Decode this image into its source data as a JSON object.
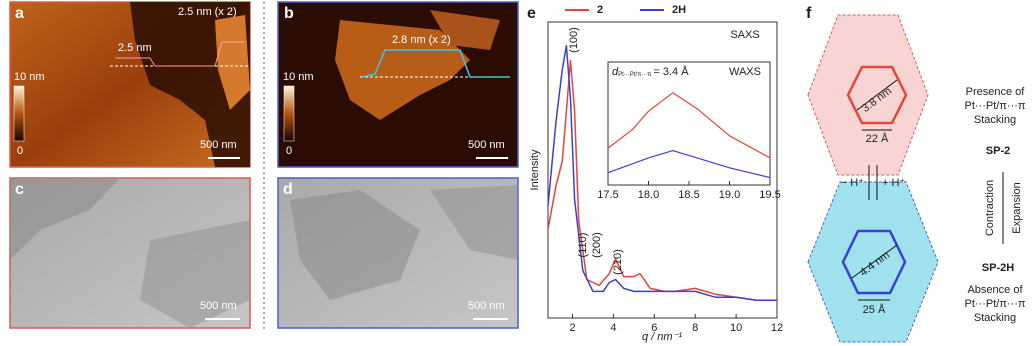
{
  "panels": {
    "a": {
      "letter": "a",
      "scale_max": "10 nm",
      "scale_min": "0",
      "scale_bar": "500 nm",
      "height_1": "2.5 nm",
      "height_2": "2.5 nm (x 2)"
    },
    "b": {
      "letter": "b",
      "scale_max": "10 nm",
      "scale_min": "0",
      "scale_bar": "500 nm",
      "height_1": "2.8 nm (x 2)"
    },
    "c": {
      "letter": "c",
      "scale_bar": "500 nm"
    },
    "d": {
      "letter": "d",
      "scale_bar": "500 nm"
    },
    "e": {
      "letter": "e"
    },
    "f": {
      "letter": "f",
      "top_diameter": "3.8 nm",
      "top_width": "22 Å",
      "bottom_diameter": "4.4 nm",
      "bottom_width": "25 Å",
      "deprotonation": "− H⁺",
      "protonation": "+ H⁺",
      "top_text": [
        "Presence of",
        "Pt···Pt/π···π",
        "Stacking"
      ],
      "top_name": "SP-2",
      "contraction": "Contraction",
      "expansion": "Expansion",
      "bottom_name": "SP-2H",
      "bottom_text": [
        "Absence of",
        "Pt···Pt/π···π",
        "Stacking"
      ]
    }
  },
  "chart_data": [
    {
      "type": "line",
      "title": "SAXS",
      "x_label": "q / nm⁻¹",
      "y_label": "Intensity",
      "xlim": [
        0.8,
        12
      ],
      "xticks": [
        2,
        4,
        6,
        8,
        10,
        12
      ],
      "ylim": [
        0,
        100
      ],
      "annotations": [
        "(100)",
        "(110)",
        "(200)",
        "(210)"
      ],
      "series": [
        {
          "name": "2",
          "color": "#e8443a",
          "x": [
            0.8,
            1.2,
            1.5,
            1.7,
            1.9,
            2.1,
            2.3,
            2.7,
            3.3,
            3.8,
            4.1,
            4.5,
            5,
            5.3,
            5.8,
            6.5,
            7,
            8,
            9,
            10,
            11,
            12
          ],
          "values": [
            30,
            45,
            53,
            70,
            87,
            70,
            33,
            13,
            11,
            15,
            20,
            14,
            14,
            15,
            10,
            9,
            9,
            10,
            8,
            7,
            6,
            6
          ]
        },
        {
          "name": "2H",
          "color": "#3b3fd8",
          "x": [
            0.8,
            1.2,
            1.5,
            1.7,
            1.9,
            2.1,
            2.5,
            3,
            3.5,
            3.8,
            4.1,
            4.5,
            5,
            5.5,
            6,
            7,
            8,
            9,
            10,
            11,
            12
          ],
          "values": [
            38,
            67,
            84,
            92,
            74,
            40,
            16,
            9,
            9,
            12,
            13,
            10,
            9,
            9,
            9,
            9,
            9,
            7,
            7,
            6,
            6
          ]
        }
      ]
    },
    {
      "type": "line",
      "title": "WAXS",
      "annotation_symbol": "d",
      "annotation_sub": "Pt···Pt/π···π",
      "annotation_value": "= 3.4 Å",
      "xlim": [
        17.5,
        19.5
      ],
      "xticks": [
        17.5,
        {
          "value": 18,
          "label": "18.0"
        },
        18.5,
        {
          "value": 19,
          "label": "19.0"
        },
        19.5
      ],
      "ylim": [
        0,
        100
      ],
      "series": [
        {
          "name": "2",
          "color": "#e8443a",
          "x": [
            17.5,
            17.8,
            18.0,
            18.3,
            18.6,
            19.0,
            19.5
          ],
          "values": [
            30,
            45,
            60,
            75,
            62,
            40,
            22
          ]
        },
        {
          "name": "2H",
          "color": "#3b3fd8",
          "x": [
            17.5,
            18.0,
            18.3,
            18.6,
            19.0,
            19.5
          ],
          "values": [
            10,
            22,
            28,
            22,
            14,
            6
          ]
        }
      ]
    }
  ]
}
